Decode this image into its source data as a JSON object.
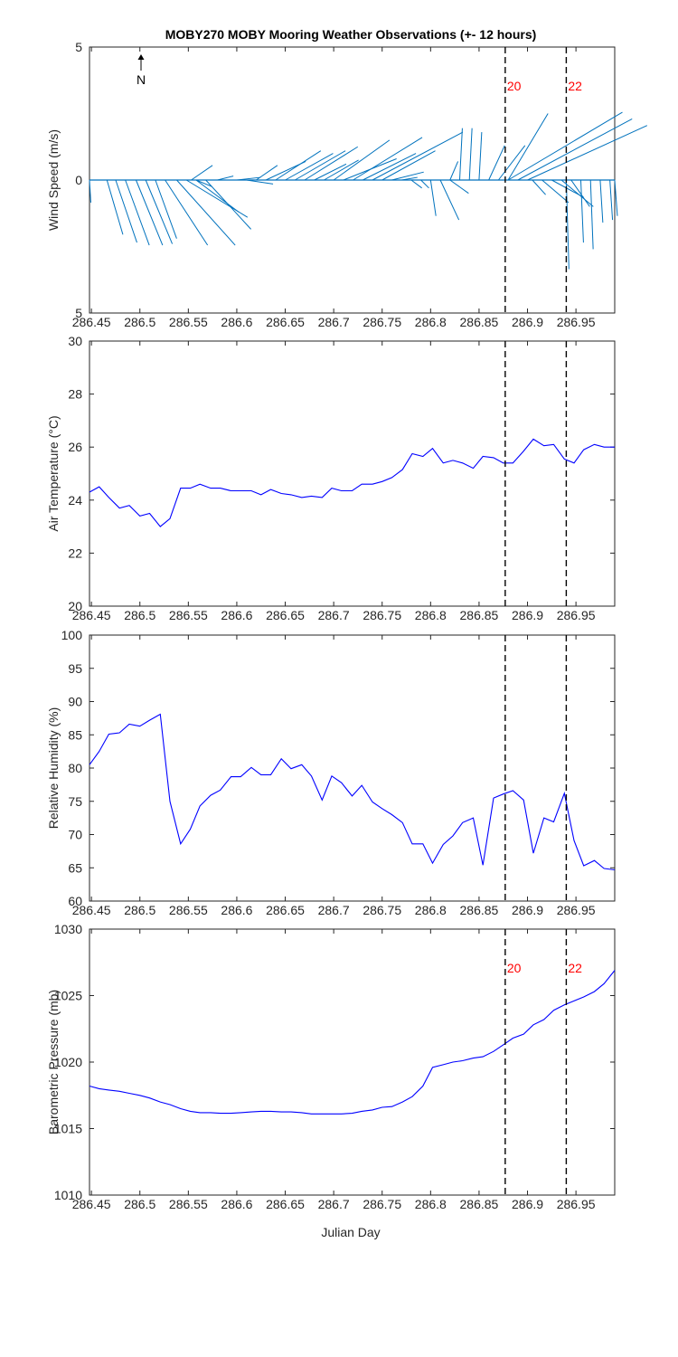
{
  "title": "MOBY270 MOBY Mooring Weather Observations (+- 12 hours)",
  "xlabel": "Julian Day",
  "north_label": "N",
  "marker_labels": [
    "20",
    "22"
  ],
  "colors": {
    "wind": "#0072BD",
    "series": "#0000FF",
    "marker_text": "#FF0000",
    "axis": "#262626",
    "text": "#262626"
  },
  "chart_data": [
    {
      "type": "vector",
      "ylabel": "Wind Speed (m/s)",
      "xlim": [
        286.448,
        286.99
      ],
      "ylim": [
        -5,
        5
      ],
      "ytick_labels": [
        "5",
        "0",
        "5"
      ],
      "xticks": [
        "286.45",
        "286.5",
        "286.55",
        "286.6",
        "286.65",
        "286.7",
        "286.75",
        "286.8",
        "286.85",
        "286.9",
        "286.95"
      ],
      "markers": [
        286.877,
        286.94
      ],
      "show_marker_labels": true,
      "vectors": [
        [
          286.448,
          0.05,
          -0.85
        ],
        [
          286.466,
          0.6,
          -2.05
        ],
        [
          286.475,
          0.8,
          -2.35
        ],
        [
          286.485,
          0.9,
          -2.45
        ],
        [
          286.496,
          1.0,
          -2.45
        ],
        [
          286.506,
          1.0,
          -2.4
        ],
        [
          286.516,
          0.8,
          -2.2
        ],
        [
          286.526,
          1.6,
          -2.45
        ],
        [
          286.538,
          2.2,
          -2.45
        ],
        [
          286.548,
          2.3,
          -1.4
        ],
        [
          286.558,
          1.6,
          -1.2
        ],
        [
          286.568,
          1.7,
          -1.85
        ],
        [
          286.553,
          0.8,
          0.55
        ],
        [
          286.558,
          0.6,
          -0.25
        ],
        [
          286.58,
          0.6,
          0.15
        ],
        [
          286.6,
          0.9,
          0.1
        ],
        [
          286.61,
          1.0,
          -0.15
        ],
        [
          286.62,
          0.8,
          0.55
        ],
        [
          286.63,
          1.5,
          0.7
        ],
        [
          286.64,
          1.7,
          1.1
        ],
        [
          286.65,
          1.8,
          1.0
        ],
        [
          286.66,
          1.9,
          1.1
        ],
        [
          286.67,
          2.0,
          1.25
        ],
        [
          286.68,
          1.2,
          0.6
        ],
        [
          286.69,
          1.3,
          0.75
        ],
        [
          286.7,
          2.1,
          1.5
        ],
        [
          286.71,
          2.0,
          0.8
        ],
        [
          286.72,
          2.6,
          1.6
        ],
        [
          286.73,
          2.0,
          1.0
        ],
        [
          286.74,
          3.4,
          1.8
        ],
        [
          286.75,
          2.0,
          1.1
        ],
        [
          286.76,
          1.2,
          0.3
        ],
        [
          286.77,
          0.6,
          0.1
        ],
        [
          286.78,
          0.4,
          -0.3
        ],
        [
          286.79,
          0.3,
          -0.3
        ],
        [
          286.8,
          0.2,
          -1.35
        ],
        [
          286.81,
          0.7,
          -1.5
        ],
        [
          286.82,
          0.3,
          0.7
        ],
        [
          286.82,
          0.7,
          -0.5
        ],
        [
          286.83,
          0.1,
          1.95
        ],
        [
          286.84,
          0.1,
          1.95
        ],
        [
          286.85,
          0.1,
          1.8
        ],
        [
          286.86,
          0.6,
          1.3
        ],
        [
          286.87,
          1.0,
          1.3
        ],
        [
          286.88,
          1.5,
          2.5
        ],
        [
          286.88,
          4.3,
          2.55
        ],
        [
          286.89,
          4.3,
          2.3
        ],
        [
          286.9,
          4.5,
          2.05
        ],
        [
          286.905,
          0.5,
          -0.55
        ],
        [
          286.915,
          1.0,
          -0.85
        ],
        [
          286.925,
          1.2,
          -0.65
        ],
        [
          286.935,
          1.2,
          -1.0
        ],
        [
          286.945,
          0.7,
          -1.0
        ],
        [
          286.94,
          0.1,
          -3.35
        ],
        [
          286.955,
          0.1,
          -2.35
        ],
        [
          286.965,
          0.1,
          -2.6
        ],
        [
          286.975,
          0.1,
          -1.6
        ],
        [
          286.985,
          0.1,
          -1.5
        ],
        [
          286.99,
          0.1,
          -1.35
        ]
      ]
    },
    {
      "type": "line",
      "ylabel": "Air Temperature (°C)",
      "xlim": [
        286.448,
        286.99
      ],
      "ylim": [
        20,
        30
      ],
      "yticks": [
        20,
        22,
        24,
        26,
        28,
        30
      ],
      "xticks": [
        "286.45",
        "286.5",
        "286.55",
        "286.6",
        "286.65",
        "286.7",
        "286.75",
        "286.8",
        "286.85",
        "286.9",
        "286.95"
      ],
      "markers": [
        286.877,
        286.94
      ],
      "show_marker_labels": false,
      "series": [
        {
          "x": [
            286.448,
            286.458,
            286.468,
            286.479,
            286.489,
            286.5,
            286.51,
            286.521,
            286.531,
            286.542,
            286.552,
            286.562,
            286.573,
            286.583,
            286.594,
            286.604,
            286.615,
            286.625,
            286.635,
            286.646,
            286.656,
            286.667,
            286.677,
            286.688,
            286.698,
            286.708,
            286.719,
            286.729,
            286.74,
            286.75,
            286.76,
            286.771,
            286.781,
            286.792,
            286.802,
            286.813,
            286.823,
            286.833,
            286.844,
            286.854,
            286.865,
            286.875,
            286.885,
            286.896,
            286.906,
            286.917,
            286.927,
            286.938,
            286.948,
            286.958,
            286.969,
            286.979,
            286.99
          ],
          "y": [
            24.3,
            24.5,
            24.1,
            23.7,
            23.8,
            23.4,
            23.5,
            23.0,
            23.3,
            24.45,
            24.45,
            24.6,
            24.45,
            24.45,
            24.35,
            24.35,
            24.35,
            24.2,
            24.4,
            24.25,
            24.2,
            24.1,
            24.15,
            24.1,
            24.45,
            24.35,
            24.35,
            24.6,
            24.6,
            24.7,
            24.85,
            25.15,
            25.75,
            25.65,
            25.95,
            25.4,
            25.5,
            25.4,
            25.2,
            25.65,
            25.6,
            25.4,
            25.4,
            25.85,
            26.3,
            26.05,
            26.1,
            25.55,
            25.4,
            25.9,
            26.1,
            26.0,
            26.0
          ]
        }
      ]
    },
    {
      "type": "line",
      "ylabel": "Relative Humidity (%)",
      "xlim": [
        286.448,
        286.99
      ],
      "ylim": [
        60,
        100
      ],
      "yticks": [
        60,
        65,
        70,
        75,
        80,
        85,
        90,
        95,
        100
      ],
      "xticks": [
        "286.45",
        "286.5",
        "286.55",
        "286.6",
        "286.65",
        "286.7",
        "286.75",
        "286.8",
        "286.85",
        "286.9",
        "286.95"
      ],
      "markers": [
        286.877,
        286.94
      ],
      "show_marker_labels": false,
      "series": [
        {
          "x": [
            286.448,
            286.458,
            286.468,
            286.479,
            286.489,
            286.5,
            286.51,
            286.521,
            286.531,
            286.542,
            286.552,
            286.562,
            286.573,
            286.583,
            286.594,
            286.604,
            286.615,
            286.625,
            286.635,
            286.646,
            286.656,
            286.667,
            286.677,
            286.688,
            286.698,
            286.708,
            286.719,
            286.729,
            286.74,
            286.75,
            286.76,
            286.771,
            286.781,
            286.792,
            286.802,
            286.813,
            286.823,
            286.833,
            286.844,
            286.854,
            286.865,
            286.875,
            286.885,
            286.896,
            286.906,
            286.917,
            286.927,
            286.938,
            286.948,
            286.958,
            286.969,
            286.979,
            286.99
          ],
          "y": [
            80.5,
            82.5,
            85.1,
            85.3,
            86.6,
            86.3,
            87.2,
            88.1,
            75.0,
            68.6,
            70.8,
            74.3,
            75.9,
            76.7,
            78.7,
            78.7,
            80.1,
            79.0,
            79.0,
            81.4,
            79.9,
            80.5,
            78.8,
            75.2,
            78.8,
            77.8,
            75.8,
            77.4,
            74.9,
            73.9,
            73.0,
            71.8,
            68.6,
            68.6,
            65.7,
            68.5,
            69.8,
            71.8,
            72.5,
            65.4,
            75.5,
            76.1,
            76.6,
            75.2,
            67.2,
            72.5,
            71.9,
            76.2,
            69.1,
            65.3,
            66.1,
            64.9,
            64.7
          ]
        }
      ]
    },
    {
      "type": "line",
      "ylabel": "Barometric Pressure (mb)",
      "xlabel": "Julian Day",
      "xlim": [
        286.448,
        286.99
      ],
      "ylim": [
        1010,
        1030
      ],
      "yticks": [
        1010,
        1015,
        1020,
        1025,
        1030
      ],
      "xticks": [
        "286.45",
        "286.5",
        "286.55",
        "286.6",
        "286.65",
        "286.7",
        "286.75",
        "286.8",
        "286.85",
        "286.9",
        "286.95"
      ],
      "markers": [
        286.877,
        286.94
      ],
      "show_marker_labels": true,
      "series": [
        {
          "x": [
            286.448,
            286.458,
            286.468,
            286.479,
            286.489,
            286.5,
            286.51,
            286.521,
            286.531,
            286.542,
            286.552,
            286.562,
            286.573,
            286.583,
            286.594,
            286.604,
            286.615,
            286.625,
            286.635,
            286.646,
            286.656,
            286.667,
            286.677,
            286.688,
            286.698,
            286.708,
            286.719,
            286.729,
            286.74,
            286.75,
            286.76,
            286.771,
            286.781,
            286.792,
            286.802,
            286.813,
            286.823,
            286.833,
            286.844,
            286.854,
            286.865,
            286.875,
            286.885,
            286.896,
            286.906,
            286.917,
            286.927,
            286.938,
            286.948,
            286.958,
            286.969,
            286.979,
            286.99
          ],
          "y": [
            1018.2,
            1018.0,
            1017.9,
            1017.8,
            1017.65,
            1017.5,
            1017.3,
            1017.0,
            1016.8,
            1016.5,
            1016.3,
            1016.2,
            1016.2,
            1016.15,
            1016.15,
            1016.2,
            1016.25,
            1016.3,
            1016.3,
            1016.25,
            1016.25,
            1016.2,
            1016.1,
            1016.1,
            1016.1,
            1016.1,
            1016.15,
            1016.3,
            1016.4,
            1016.6,
            1016.65,
            1017.0,
            1017.4,
            1018.2,
            1019.6,
            1019.8,
            1020.0,
            1020.1,
            1020.3,
            1020.4,
            1020.8,
            1021.3,
            1021.8,
            1022.1,
            1022.8,
            1023.2,
            1023.9,
            1024.3,
            1024.6,
            1024.9,
            1025.3,
            1025.9,
            1026.9
          ]
        }
      ]
    }
  ]
}
